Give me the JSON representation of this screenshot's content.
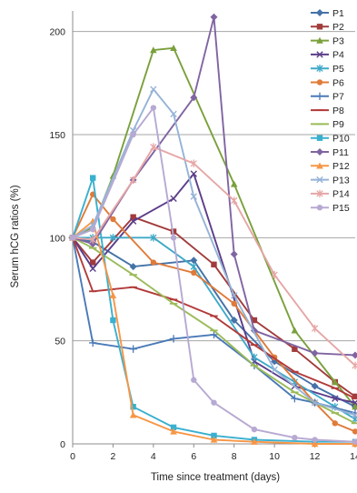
{
  "chart_data": {
    "type": "line",
    "title": "",
    "xlabel": "Time since treatment (days)",
    "ylabel": "Serum hCG ratios (%)",
    "xlim": [
      0,
      14
    ],
    "ylim": [
      0,
      210
    ],
    "xticks": [
      0,
      2,
      4,
      6,
      8,
      10,
      12,
      14
    ],
    "yticks": [
      0,
      50,
      100,
      150,
      200
    ],
    "grid": "horizontal",
    "legend": "right",
    "series": [
      {
        "name": "P1",
        "color": "#4572a7",
        "marker": "diamond",
        "x": [
          0,
          1,
          3,
          6,
          8,
          10,
          12,
          14
        ],
        "y": [
          100,
          98,
          86,
          89,
          60,
          40,
          28,
          18
        ]
      },
      {
        "name": "P2",
        "color": "#a23b3b",
        "marker": "square",
        "x": [
          0,
          1,
          3,
          5,
          7,
          9,
          11,
          13,
          14
        ],
        "y": [
          100,
          88,
          110,
          103,
          87,
          60,
          46,
          30,
          23
        ]
      },
      {
        "name": "P3",
        "color": "#7aa03c",
        "marker": "triangle",
        "x": [
          0,
          1,
          2,
          4,
          5,
          8,
          11,
          13,
          14
        ],
        "y": [
          100,
          105,
          130,
          191,
          192,
          126,
          55,
          30,
          18
        ]
      },
      {
        "name": "P4",
        "color": "#5c3d8a",
        "marker": "x",
        "x": [
          0,
          1,
          3,
          5,
          6,
          9,
          11,
          13,
          14
        ],
        "y": [
          100,
          85,
          108,
          119,
          131,
          40,
          28,
          22,
          20
        ]
      },
      {
        "name": "P5",
        "color": "#3fa9c8",
        "marker": "star",
        "x": [
          0,
          1,
          2,
          4,
          6,
          9,
          11,
          13,
          14
        ],
        "y": [
          100,
          100,
          100,
          100,
          86,
          42,
          30,
          18,
          12
        ]
      },
      {
        "name": "P6",
        "color": "#e07b39",
        "marker": "circle",
        "x": [
          0,
          1,
          2,
          4,
          6,
          8,
          10,
          12,
          13,
          14
        ],
        "y": [
          100,
          121,
          109,
          88,
          83,
          68,
          42,
          20,
          10,
          6
        ]
      },
      {
        "name": "P7",
        "color": "#4a7ab7",
        "marker": "plus",
        "x": [
          0,
          1,
          3,
          5,
          7,
          9,
          11,
          12,
          14
        ],
        "y": [
          100,
          49,
          46,
          51,
          53,
          38,
          22,
          20,
          15
        ]
      },
      {
        "name": "P8",
        "color": "#b23a3a",
        "marker": "dash",
        "x": [
          0,
          1,
          3,
          5,
          7,
          9,
          11,
          13,
          14
        ],
        "y": [
          100,
          74,
          76,
          70,
          62,
          48,
          35,
          27,
          22
        ]
      },
      {
        "name": "P9",
        "color": "#9bbb59",
        "marker": "dash",
        "x": [
          0,
          1,
          3,
          5,
          7,
          9,
          11,
          13,
          14
        ],
        "y": [
          100,
          95,
          82,
          68,
          55,
          38,
          25,
          15,
          10
        ]
      },
      {
        "name": "P10",
        "color": "#3ab0cf",
        "marker": "square",
        "x": [
          0,
          1,
          2,
          3,
          5,
          7,
          9,
          12,
          14
        ],
        "y": [
          100,
          129,
          60,
          18,
          8,
          4,
          2,
          1,
          1
        ]
      },
      {
        "name": "P11",
        "color": "#8064a2",
        "marker": "diamond",
        "x": [
          0,
          1,
          3,
          6,
          7,
          8,
          9,
          12,
          14
        ],
        "y": [
          100,
          97,
          128,
          168,
          207,
          92,
          55,
          44,
          43
        ]
      },
      {
        "name": "P12",
        "color": "#f79646",
        "marker": "triangle",
        "x": [
          0,
          1,
          2,
          3,
          5,
          7,
          9,
          12,
          14
        ],
        "y": [
          100,
          108,
          72,
          14,
          6,
          2,
          1,
          0,
          0
        ]
      },
      {
        "name": "P13",
        "color": "#95b3d7",
        "marker": "x",
        "x": [
          0,
          1,
          3,
          4,
          5,
          6,
          8,
          10,
          12,
          14
        ],
        "y": [
          100,
          106,
          152,
          172,
          160,
          120,
          72,
          36,
          20,
          14
        ]
      },
      {
        "name": "P14",
        "color": "#e6a6a6",
        "marker": "star",
        "x": [
          0,
          1,
          3,
          4,
          6,
          8,
          10,
          12,
          14
        ],
        "y": [
          100,
          99,
          128,
          144,
          136,
          118,
          82,
          56,
          38
        ]
      },
      {
        "name": "P15",
        "color": "#b7a9d3",
        "marker": "circle",
        "x": [
          0,
          1,
          3,
          4,
          5,
          6,
          7,
          9,
          11,
          12,
          14
        ],
        "y": [
          100,
          104,
          150,
          163,
          100,
          31,
          20,
          7,
          3,
          2,
          1
        ]
      }
    ]
  }
}
